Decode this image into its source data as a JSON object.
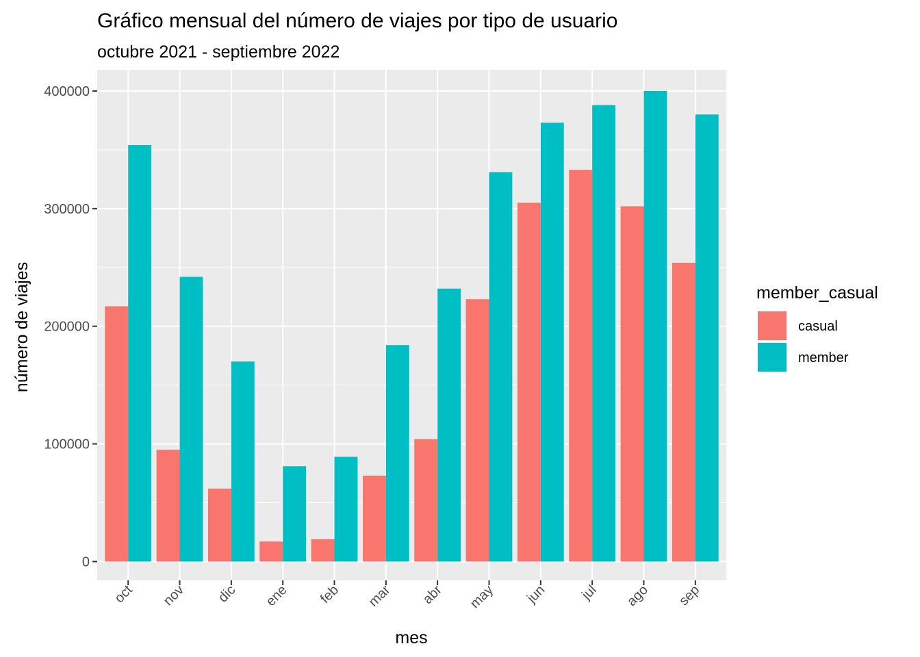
{
  "chart_data": {
    "type": "bar",
    "title": "Gráfico mensual del número de viajes por tipo de usuario",
    "subtitle": "octubre 2021 - septiembre 2022",
    "xlabel": "mes",
    "ylabel": "número de viajes",
    "categories": [
      "oct",
      "nov",
      "dic",
      "ene",
      "feb",
      "mar",
      "abr",
      "may",
      "jun",
      "jul",
      "ago",
      "sep"
    ],
    "series": [
      {
        "name": "casual",
        "color": "#F8766D",
        "values": [
          217000,
          95000,
          62000,
          17000,
          19000,
          73000,
          104000,
          223000,
          305000,
          333000,
          302000,
          254000
        ]
      },
      {
        "name": "member",
        "color": "#00BFC4",
        "values": [
          354000,
          242000,
          170000,
          81000,
          89000,
          184000,
          232000,
          331000,
          373000,
          388000,
          400000,
          380000
        ]
      }
    ],
    "ylim": [
      -16000,
      418000
    ],
    "yticks": [
      0,
      100000,
      200000,
      300000,
      400000
    ],
    "ytick_labels": [
      "0",
      "100000",
      "200000",
      "300000",
      "400000"
    ],
    "legend": {
      "title": "member_casual",
      "position": "right"
    },
    "grid": true,
    "panel_background": "#EBEBEB",
    "grid_color": "#FFFFFF"
  }
}
